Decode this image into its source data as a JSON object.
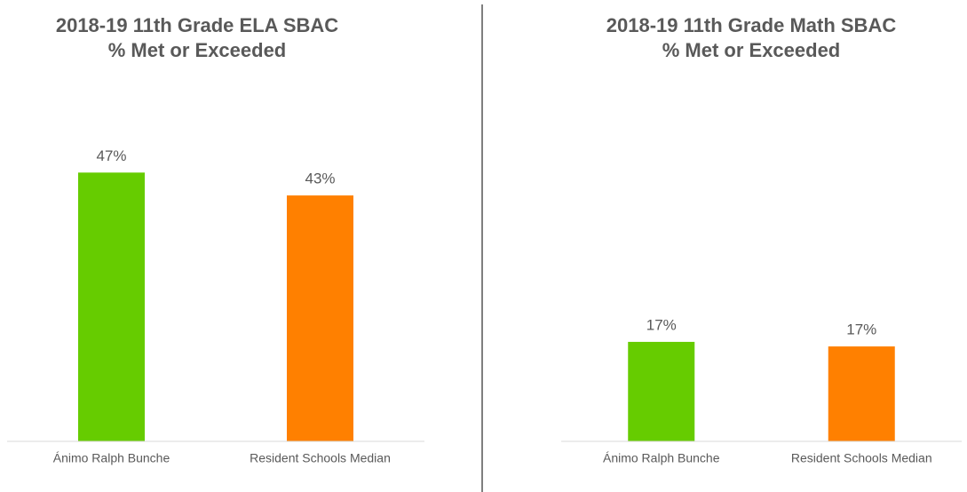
{
  "chart_data": [
    {
      "type": "bar",
      "title": "2018-19 11th Grade ELA SBAC",
      "subtitle": "% Met or Exceeded",
      "categories": [
        "Ánimo Ralph Bunche",
        "Resident Schools Median"
      ],
      "values": [
        47,
        43
      ],
      "value_labels": [
        "47%",
        "43%"
      ],
      "colors": [
        "#66cc00",
        "#ff8000"
      ],
      "ylim": [
        0,
        50
      ]
    },
    {
      "type": "bar",
      "title": "2018-19 11th Grade Math SBAC",
      "subtitle": "% Met or Exceeded",
      "categories": [
        "Ánimo Ralph Bunche",
        "Resident Schools Median"
      ],
      "values": [
        17.4,
        16.6
      ],
      "value_labels": [
        "17%",
        "17%"
      ],
      "colors": [
        "#66cc00",
        "#ff8000"
      ],
      "ylim": [
        0,
        50
      ]
    }
  ]
}
